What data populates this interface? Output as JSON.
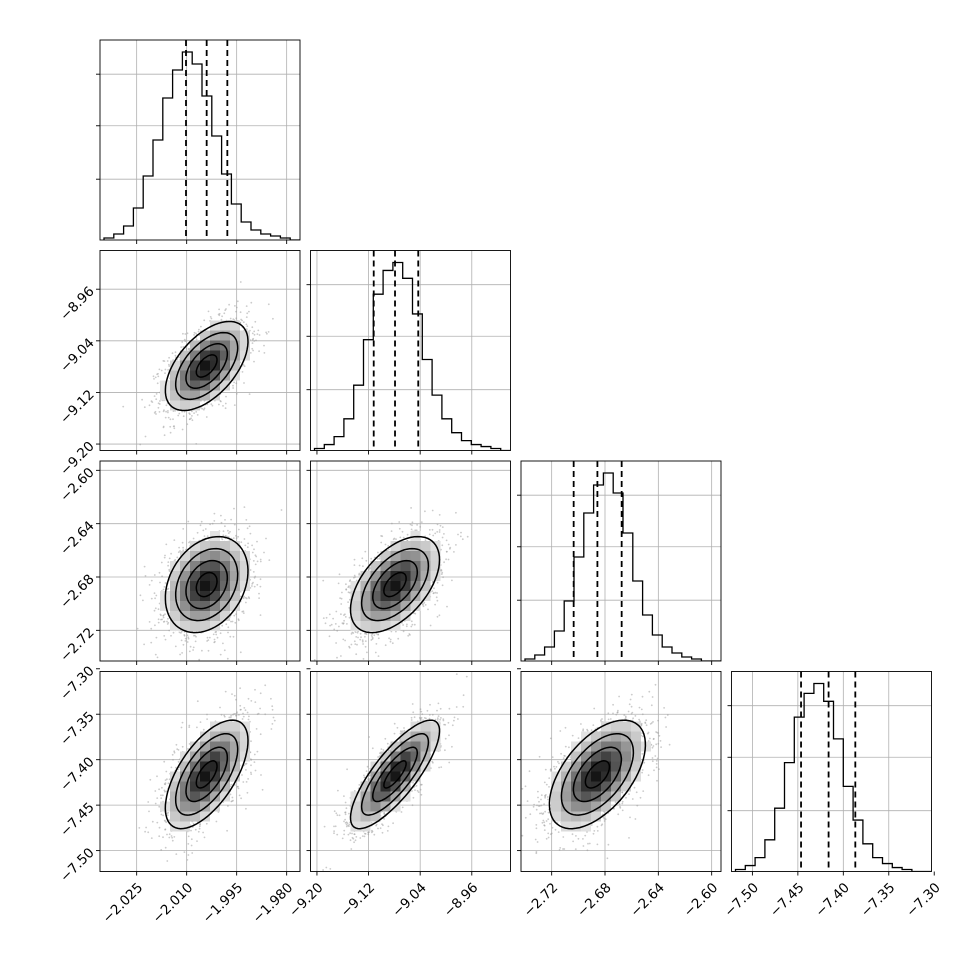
{
  "chart_data": {
    "type": "corner",
    "title": "",
    "description": "Corner plot of a 4-parameter posterior. The figure has no printed axis labels; the values below are read from tick labels and estimated from the marginal peaks.",
    "grid": true,
    "colors": {
      "hist": "#000000",
      "points": "#a0a0a0",
      "contour": "#000000"
    },
    "params": [
      {
        "range": [
          -2.036,
          -1.976
        ],
        "ticks": [
          "−2.025",
          "−2.010",
          "−1.995",
          "−1.980"
        ],
        "tick_values": [
          -2.025,
          -2.01,
          -1.995,
          -1.98
        ],
        "quantiles": [
          -2.0102,
          -2.004,
          -1.9978
        ],
        "hist_counts": [
          1,
          3,
          7,
          16,
          32,
          50,
          71,
          85,
          94,
          88,
          72,
          52,
          33,
          18,
          9,
          5,
          3,
          2,
          1,
          0
        ]
      },
      {
        "range": [
          -9.21,
          -8.9
        ],
        "ticks": [
          "−9.20",
          "−9.12",
          "−9.04",
          "−8.96"
        ],
        "tick_values": [
          -9.2,
          -9.12,
          -9.04,
          -8.96
        ],
        "quantiles": [
          -9.112,
          -9.079,
          -9.043
        ],
        "hist_counts": [
          1,
          3,
          7,
          16,
          33,
          56,
          79,
          91,
          95,
          87,
          69,
          46,
          28,
          16,
          9,
          5,
          3,
          2,
          1,
          0
        ]
      },
      {
        "range": [
          -2.743,
          -2.593
        ],
        "ticks": [
          "−2.72",
          "−2.68",
          "−2.64",
          "−2.60"
        ],
        "tick_values": [
          -2.72,
          -2.68,
          -2.64,
          -2.6
        ],
        "quantiles": [
          -2.7035,
          -2.6857,
          -2.6675
        ],
        "hist_counts": [
          1,
          3,
          7,
          15,
          30,
          52,
          74,
          88,
          94,
          84,
          64,
          40,
          23,
          13,
          7,
          4,
          2,
          1,
          0,
          0
        ]
      },
      {
        "range": [
          -7.523,
          -7.303
        ],
        "ticks": [
          "−7.50",
          "−7.45",
          "−7.40",
          "−7.35",
          "−7.30"
        ],
        "tick_values": [
          -7.5,
          -7.45,
          -7.4,
          -7.35,
          -7.3
        ],
        "quantiles": [
          -7.4465,
          -7.4162,
          -7.3868
        ],
        "hist_counts": [
          1,
          3,
          7,
          16,
          32,
          55,
          78,
          90,
          95,
          86,
          67,
          43,
          26,
          14,
          7,
          4,
          2,
          1,
          0,
          0
        ]
      }
    ],
    "correlations": [
      [
        1.0,
        0.55,
        0.28,
        0.62
      ],
      [
        0.55,
        1.0,
        0.52,
        0.8
      ],
      [
        0.28,
        0.52,
        1.0,
        0.55
      ],
      [
        0.62,
        0.8,
        0.55,
        1.0
      ]
    ],
    "contour_levels_sigma": [
      0.5,
      1.0,
      1.5,
      2.0
    ]
  }
}
